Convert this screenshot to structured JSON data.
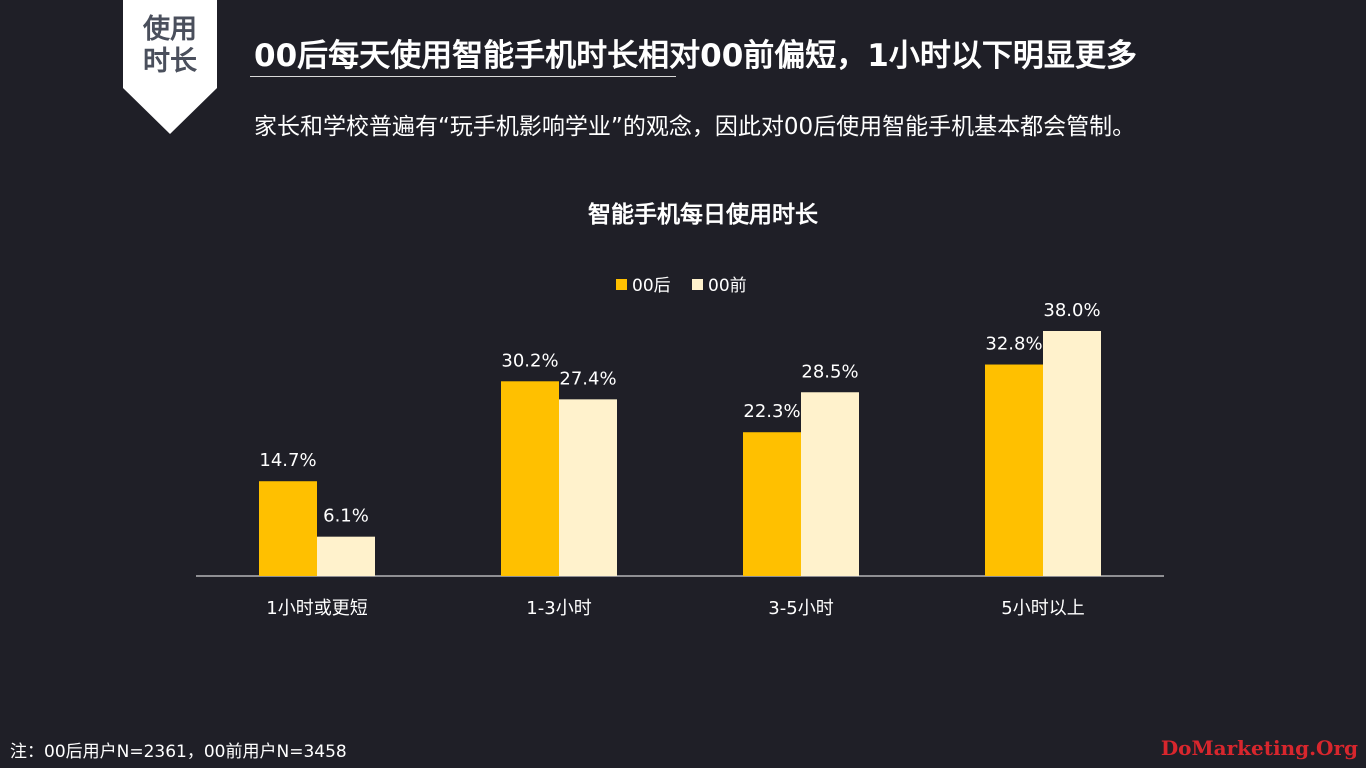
{
  "badge": {
    "line1": "使用",
    "line2": "时长"
  },
  "header": {
    "title": "00后每天使用智能手机时长相对00前偏短，1小时以下明显更多",
    "subtitle": "家长和学校普遍有“玩手机影响学业”的观念，因此对00后使用智能手机基本都会管制。"
  },
  "chart_data": {
    "type": "bar",
    "title": "智能手机每日使用时长",
    "categories": [
      "1小时或更短",
      "1-3小时",
      "3-5小时",
      "5小时以上"
    ],
    "series": [
      {
        "name": "00后",
        "values": [
          14.7,
          30.2,
          22.3,
          32.8
        ],
        "labels": [
          "14.7%",
          "30.2%",
          "22.3%",
          "32.8%"
        ],
        "color": "#ffc000"
      },
      {
        "name": "00前",
        "values": [
          6.1,
          27.4,
          28.5,
          38.0
        ],
        "labels": [
          "6.1%",
          "27.4%",
          "28.5%",
          "38.0%"
        ],
        "color": "#fff2cc"
      }
    ],
    "ylim": [
      0,
      40
    ],
    "grid": false,
    "legend": "top-center"
  },
  "footnote": "注：00后用户N=2361，00前用户N=3458",
  "watermark": "DoMarketing.Org"
}
